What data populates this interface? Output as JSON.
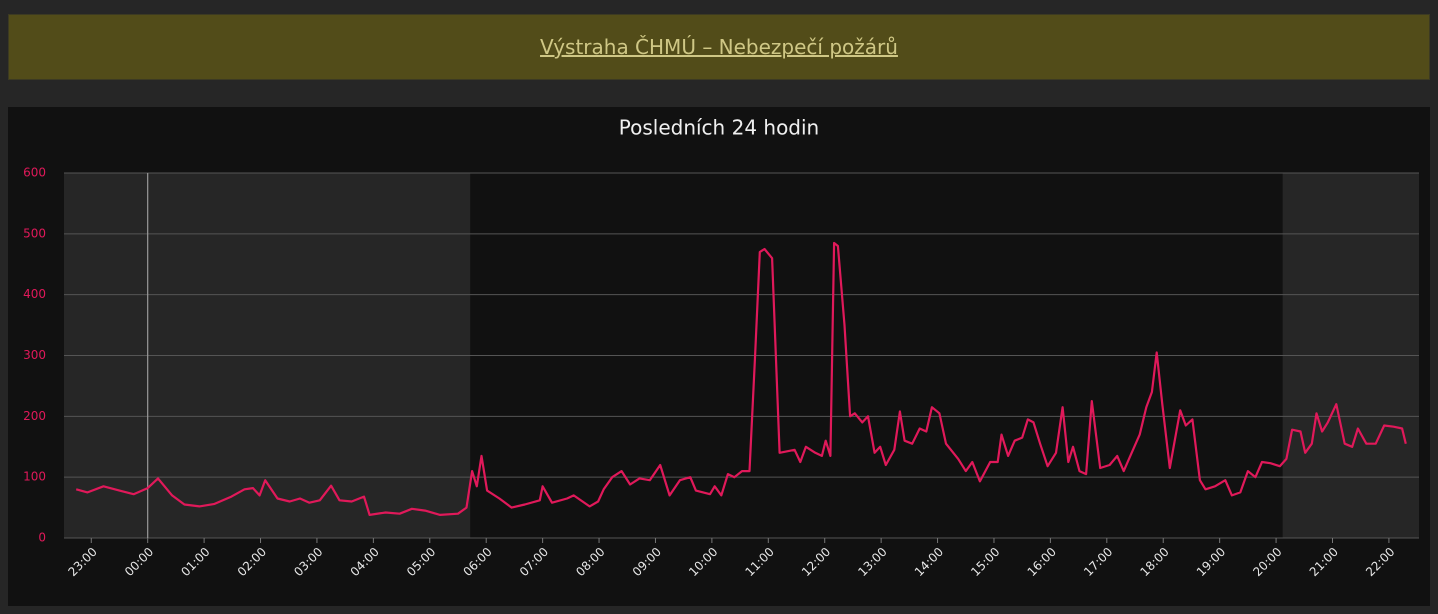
{
  "banner": {
    "text": "Výstraha ČHMÚ – Nebezpečí požárů"
  },
  "chart_data": {
    "type": "line",
    "title": "Posledních 24 hodin",
    "color": "#e0195a",
    "grid": true,
    "xlim": [
      1351,
      2792
    ],
    "xticks": [
      {
        "value": 1380,
        "label": "23:00"
      },
      {
        "value": 1440,
        "label": "00:00"
      },
      {
        "value": 1500,
        "label": "01:00"
      },
      {
        "value": 1560,
        "label": "02:00"
      },
      {
        "value": 1620,
        "label": "03:00"
      },
      {
        "value": 1680,
        "label": "04:00"
      },
      {
        "value": 1740,
        "label": "05:00"
      },
      {
        "value": 1800,
        "label": "06:00"
      },
      {
        "value": 1860,
        "label": "07:00"
      },
      {
        "value": 1920,
        "label": "08:00"
      },
      {
        "value": 1980,
        "label": "09:00"
      },
      {
        "value": 2040,
        "label": "10:00"
      },
      {
        "value": 2100,
        "label": "11:00"
      },
      {
        "value": 2160,
        "label": "12:00"
      },
      {
        "value": 2220,
        "label": "13:00"
      },
      {
        "value": 2280,
        "label": "14:00"
      },
      {
        "value": 2340,
        "label": "15:00"
      },
      {
        "value": 2400,
        "label": "16:00"
      },
      {
        "value": 2460,
        "label": "17:00"
      },
      {
        "value": 2520,
        "label": "18:00"
      },
      {
        "value": 2580,
        "label": "19:00"
      },
      {
        "value": 2640,
        "label": "20:00"
      },
      {
        "value": 2700,
        "label": "21:00"
      },
      {
        "value": 2760,
        "label": "22:00"
      }
    ],
    "ylim": [
      0,
      600
    ],
    "yticks": [
      0,
      100,
      200,
      300,
      400,
      500,
      600
    ],
    "night_bands": [
      [
        1351,
        1783
      ],
      [
        2647,
        2792
      ]
    ],
    "midnight_line": 1440,
    "x": [
      1364,
      1376,
      1393,
      1410,
      1425,
      1440,
      1451,
      1466,
      1479,
      1495,
      1511,
      1529,
      1543,
      1552,
      1559,
      1565,
      1578,
      1591,
      1602,
      1612,
      1623,
      1635,
      1644,
      1657,
      1670,
      1676,
      1693,
      1708,
      1721,
      1735,
      1751,
      1770,
      1779,
      1785,
      1790,
      1795,
      1801,
      1814,
      1827,
      1841,
      1857,
      1860,
      1870,
      1886,
      1893,
      1910,
      1919,
      1925,
      1934,
      1944,
      1953,
      1963,
      1974,
      1985,
      1995,
      2006,
      2017,
      2023,
      2038,
      2043,
      2050,
      2057,
      2064,
      2072,
      2080,
      2086,
      2091,
      2096,
      2104,
      2112,
      2128,
      2134,
      2140,
      2150,
      2157,
      2161,
      2166,
      2170,
      2174,
      2181,
      2187,
      2192,
      2200,
      2206,
      2213,
      2219,
      2225,
      2234,
      2240,
      2245,
      2253,
      2261,
      2268,
      2274,
      2282,
      2289,
      2302,
      2310,
      2317,
      2325,
      2336,
      2344,
      2348,
      2355,
      2362,
      2370,
      2376,
      2382,
      2389,
      2397,
      2406,
      2413,
      2419,
      2424,
      2431,
      2438,
      2444,
      2453,
      2463,
      2471,
      2478,
      2485,
      2495,
      2502,
      2508,
      2513,
      2519,
      2527,
      2538,
      2544,
      2551,
      2559,
      2565,
      2575,
      2586,
      2593,
      2602,
      2610,
      2618,
      2625,
      2634,
      2644,
      2651,
      2657,
      2666,
      2671,
      2678,
      2683,
      2689,
      2695,
      2704,
      2713,
      2721,
      2727,
      2736,
      2746,
      2755,
      2765,
      2774,
      2778
    ],
    "values": [
      80,
      75,
      85,
      78,
      72,
      82,
      98,
      70,
      55,
      52,
      56,
      68,
      80,
      82,
      70,
      95,
      65,
      60,
      65,
      58,
      62,
      86,
      62,
      60,
      68,
      38,
      42,
      40,
      48,
      45,
      38,
      40,
      50,
      110,
      85,
      135,
      78,
      65,
      50,
      55,
      62,
      85,
      58,
      65,
      70,
      52,
      60,
      80,
      100,
      110,
      88,
      98,
      95,
      120,
      70,
      95,
      100,
      78,
      72,
      85,
      70,
      105,
      100,
      110,
      110,
      300,
      470,
      475,
      460,
      140,
      145,
      125,
      150,
      140,
      135,
      160,
      135,
      485,
      480,
      350,
      200,
      205,
      190,
      200,
      140,
      150,
      120,
      145,
      208,
      160,
      155,
      180,
      175,
      215,
      205,
      155,
      130,
      110,
      125,
      93,
      125,
      125,
      170,
      135,
      160,
      165,
      195,
      190,
      155,
      118,
      140,
      215,
      125,
      150,
      110,
      105,
      225,
      115,
      120,
      135,
      110,
      135,
      170,
      215,
      240,
      305,
      220,
      115,
      210,
      185,
      195,
      95,
      80,
      85,
      95,
      70,
      75,
      110,
      100,
      125,
      123,
      118,
      130,
      178,
      175,
      140,
      155,
      205,
      175,
      190,
      220,
      155,
      150,
      180,
      155,
      155,
      185,
      183,
      180,
      155
    ]
  }
}
